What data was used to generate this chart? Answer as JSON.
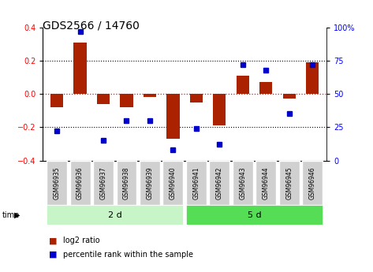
{
  "title": "GDS2566 / 14760",
  "samples": [
    "GSM96935",
    "GSM96936",
    "GSM96937",
    "GSM96938",
    "GSM96939",
    "GSM96940",
    "GSM96941",
    "GSM96942",
    "GSM96943",
    "GSM96944",
    "GSM96945",
    "GSM96946"
  ],
  "log2_ratio": [
    -0.08,
    0.31,
    -0.06,
    -0.08,
    -0.02,
    -0.27,
    -0.05,
    -0.19,
    0.11,
    0.07,
    -0.03,
    0.19
  ],
  "percentile_rank": [
    22,
    97,
    15,
    30,
    30,
    8,
    24,
    12,
    72,
    68,
    35,
    72
  ],
  "groups": [
    {
      "label": "2 d",
      "start": 0,
      "end": 5,
      "color": "#c8f5c8"
    },
    {
      "label": "5 d",
      "start": 6,
      "end": 11,
      "color": "#50d050"
    }
  ],
  "bar_color": "#aa2200",
  "dot_color": "#0000cc",
  "ylim_left": [
    -0.4,
    0.4
  ],
  "ylim_right": [
    0,
    100
  ],
  "yticks_left": [
    -0.4,
    -0.2,
    0.0,
    0.2,
    0.4
  ],
  "yticks_right": [
    0,
    25,
    50,
    75,
    100
  ],
  "ytick_labels_right": [
    "0",
    "25",
    "50",
    "75",
    "100%"
  ],
  "hlines_black": [
    -0.2,
    0.2
  ],
  "hline_red": 0.0,
  "background_color": "#ffffff",
  "legend_bar_label": "log2 ratio",
  "legend_dot_label": "percentile rank within the sample",
  "title_fontsize": 10,
  "tick_fontsize": 7,
  "label_fontsize": 7
}
